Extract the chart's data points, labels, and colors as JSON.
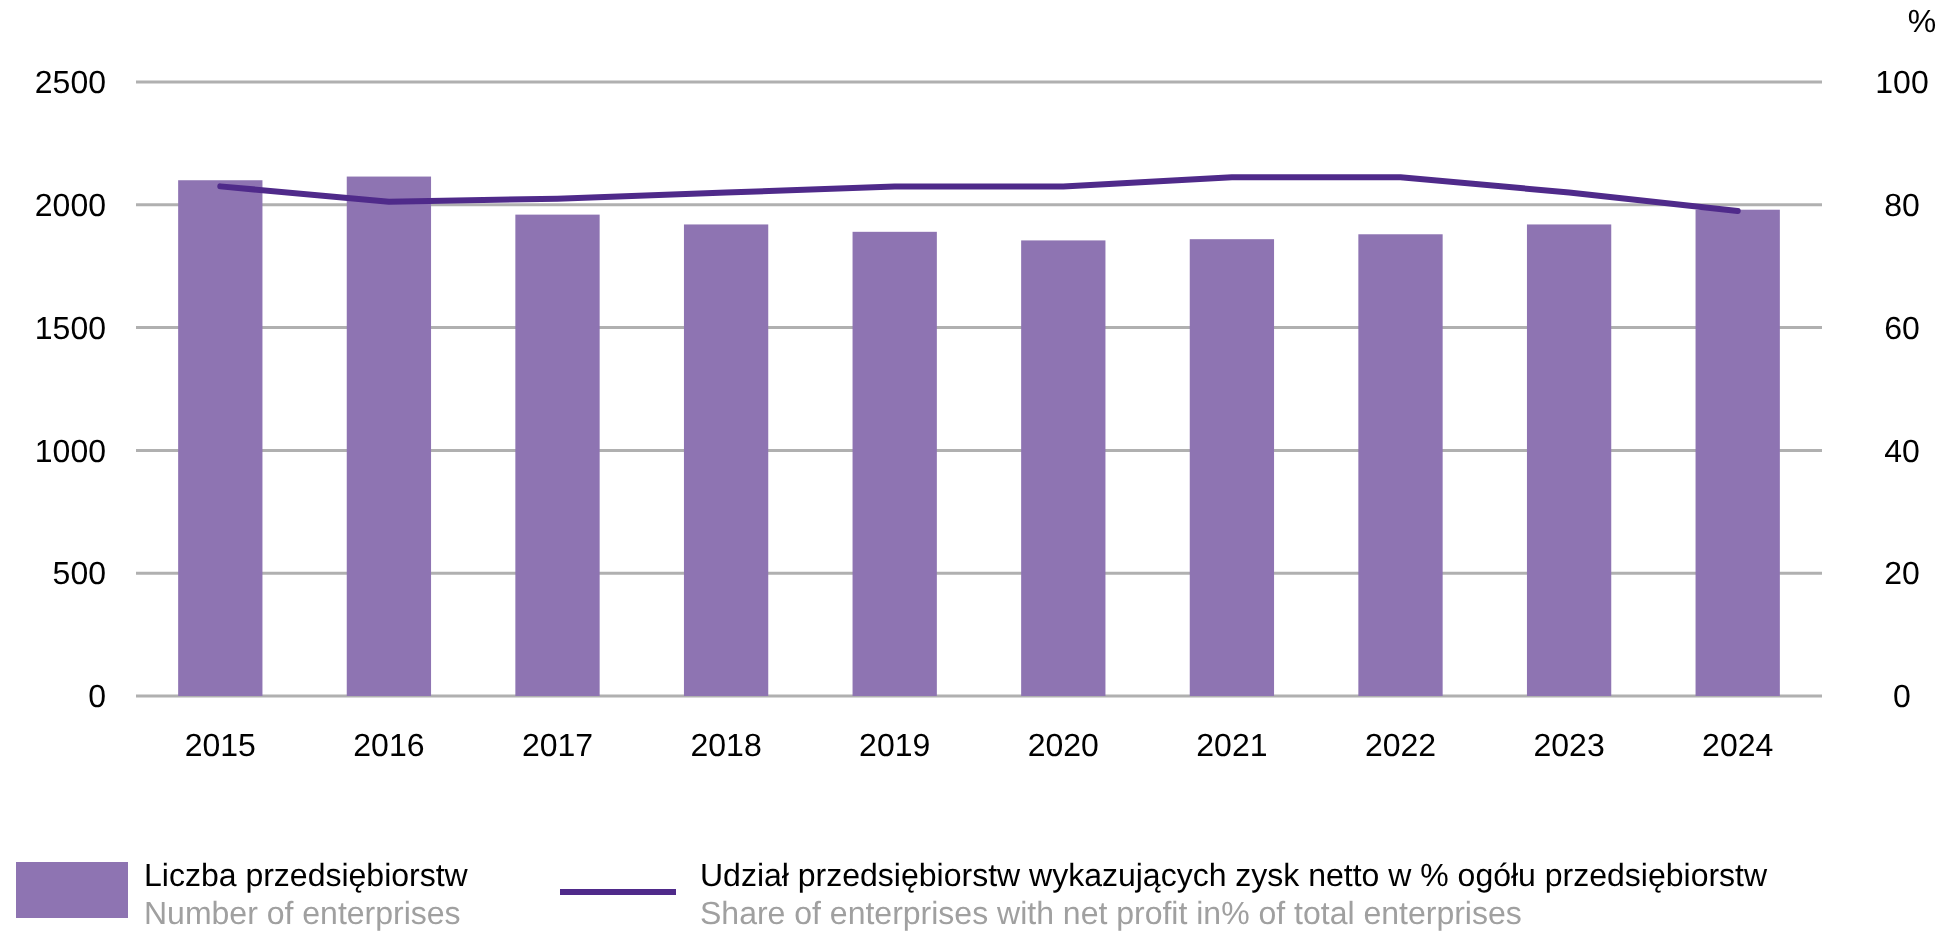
{
  "chart_data": {
    "type": "bar",
    "categories": [
      "2015",
      "2016",
      "2017",
      "2018",
      "2019",
      "2020",
      "2021",
      "2022",
      "2023",
      "2024"
    ],
    "ylim": [
      0,
      2500
    ],
    "yticks": [
      0,
      500,
      1000,
      1500,
      2000,
      2500
    ],
    "y2lim": [
      0,
      100
    ],
    "y2ticks": [
      0,
      20,
      40,
      60,
      80,
      100
    ],
    "y2label": "%",
    "grid": "y",
    "legend": "bottom",
    "series": [
      {
        "name": "Liczba przedsiębiorstw\nNumber of enterprises",
        "color": "#8e74b2",
        "values": [
          2100,
          2115,
          1960,
          1920,
          1890,
          1855,
          1860,
          1880,
          1920,
          1980
        ]
      },
      {
        "type": "line",
        "axis": "y2",
        "name": "Udział przedsiębiorstw wykazujących zysk netto w % ogółu przedsiębiorstw\nShare of enterprises with net profit in% of total enterprises",
        "color": "#4f2a8a",
        "values": [
          83,
          80.5,
          81,
          82,
          83,
          83,
          84.5,
          84.5,
          82,
          79
        ]
      }
    ]
  }
}
